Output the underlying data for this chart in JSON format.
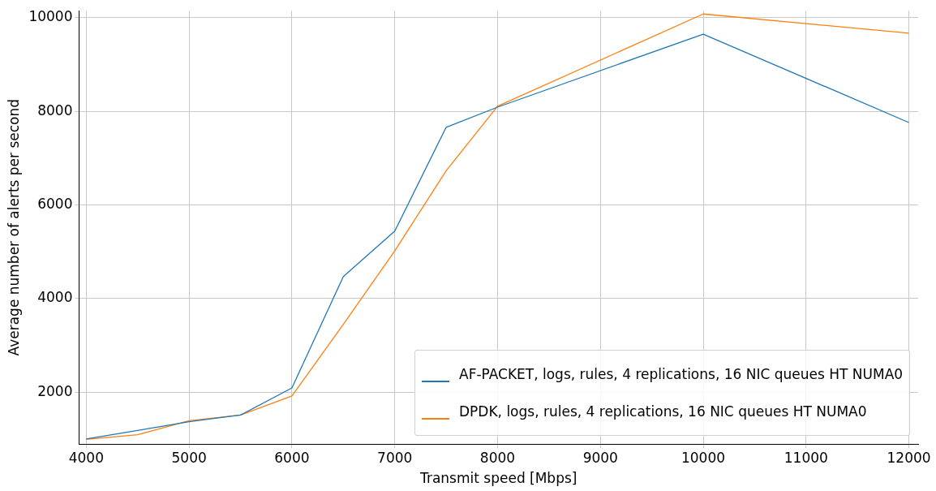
{
  "chart_data": {
    "type": "line",
    "xlabel": "Transmit speed [Mbps]",
    "ylabel": "Average number of alerts per second",
    "x": [
      4000,
      4500,
      5000,
      5500,
      6000,
      6500,
      7000,
      7500,
      8000,
      10000,
      12000
    ],
    "series": [
      {
        "name": "AF-PACKET, logs, rules, 4 replications, 16 NIC queues HT NUMA0",
        "color": "#1f77b4",
        "values": [
          1000,
          1180,
          1370,
          1510,
          2090,
          4470,
          5440,
          7660,
          8090,
          9650,
          7760
        ]
      },
      {
        "name": "DPDK, logs, rules, 4 replications, 16 NIC queues HT NUMA0",
        "color": "#ff7f0e",
        "values": [
          990,
          1090,
          1390,
          1510,
          1920,
          3450,
          5020,
          6730,
          8110,
          10080,
          9670
        ]
      }
    ],
    "xlim": [
      3930,
      12090
    ],
    "ylim": [
      890,
      10150
    ],
    "xticks": [
      4000,
      5000,
      6000,
      7000,
      8000,
      9000,
      10000,
      11000,
      12000
    ],
    "yticks": [
      2000,
      4000,
      6000,
      8000,
      10000
    ],
    "grid": true,
    "legend": "bottom right",
    "marker": "none",
    "line_style": "solid"
  }
}
